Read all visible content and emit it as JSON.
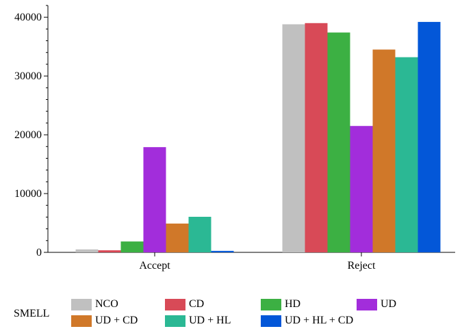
{
  "chart_data": {
    "type": "bar",
    "categories": [
      "Accept",
      "Reject"
    ],
    "ylim": [
      0,
      42000
    ],
    "yticks": [
      0,
      10000,
      20000,
      30000,
      40000
    ],
    "grid": false,
    "legend_title": "SMELL",
    "legend_position": "bottom",
    "series": [
      {
        "name": "NCO",
        "color": "#c0c0c0",
        "values": [
          500,
          38800
        ]
      },
      {
        "name": "CD",
        "color": "#d84a57",
        "values": [
          350,
          39000
        ]
      },
      {
        "name": "HD",
        "color": "#3cb043",
        "values": [
          1850,
          37400
        ]
      },
      {
        "name": "UD",
        "color": "#a22ddb",
        "values": [
          17900,
          21500
        ]
      },
      {
        "name": "UD + CD",
        "color": "#d07829",
        "values": [
          4900,
          34500
        ]
      },
      {
        "name": "UD + HL",
        "color": "#2bb894",
        "values": [
          6050,
          33200
        ]
      },
      {
        "name": "UD + HL + CD",
        "color": "#0357d8",
        "values": [
          250,
          39200
        ]
      }
    ]
  }
}
